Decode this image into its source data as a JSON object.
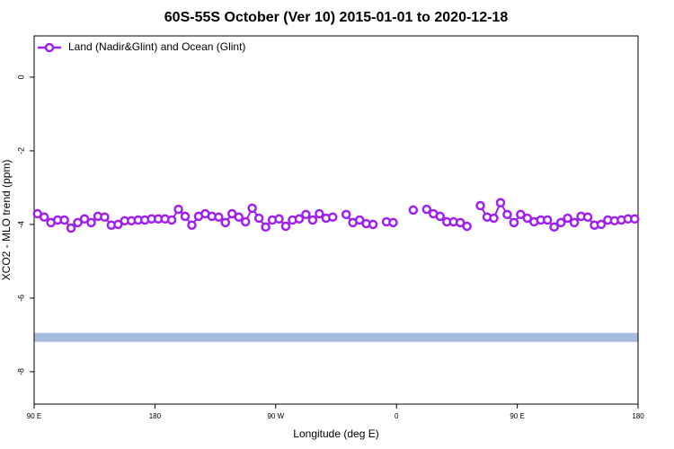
{
  "chart_data": {
    "type": "line",
    "title": "60S-55S October (Ver 10)   2015-01-01 to 2020-12-18",
    "x_label": "Longitude (deg E)",
    "y_label": "XCO2 - MLO trend (ppm)",
    "x": [
      92.5,
      97.5,
      102.5,
      107.5,
      112.5,
      117.5,
      122.5,
      127.5,
      132.5,
      137.5,
      142.5,
      147.5,
      152.5,
      157.5,
      162.5,
      167.5,
      172.5,
      177.5,
      182.5,
      187.5,
      192.5,
      197.5,
      202.5,
      207.5,
      212.5,
      217.5,
      222.5,
      227.5,
      232.5,
      237.5,
      242.5,
      247.5,
      252.5,
      257.5,
      262.5,
      267.5,
      272.5,
      277.5,
      282.5,
      287.5,
      292.5,
      297.5,
      302.5,
      307.5,
      312.5,
      317.5,
      322.5,
      327.5,
      332.5,
      337.5,
      342.5,
      347.5,
      352.5,
      357.5,
      362.5,
      367.5,
      372.5,
      377.5,
      382.5,
      387.5,
      392.5,
      397.5,
      402.5,
      407.5,
      412.5,
      417.5,
      422.5,
      427.5,
      432.5,
      437.5,
      442.5,
      447.5,
      452.5,
      457.5,
      462.5,
      467.5,
      472.5,
      477.5,
      482.5,
      487.5,
      492.5,
      497.5,
      502.5,
      507.5,
      512.5,
      517.5,
      522.5,
      527.5,
      532.5,
      537.5
    ],
    "series": [
      {
        "name": "Land (Nadir&Glint) and Ocean (Glint)",
        "color": "#a020f0",
        "values": [
          -3.71,
          -3.8,
          -3.95,
          -3.88,
          -3.88,
          -4.1,
          -3.95,
          -3.85,
          -3.95,
          -3.78,
          -3.8,
          -4.02,
          -4.0,
          -3.9,
          -3.9,
          -3.88,
          -3.88,
          -3.85,
          -3.85,
          -3.85,
          -3.88,
          -3.59,
          -3.78,
          -4.02,
          -3.78,
          -3.71,
          -3.78,
          -3.8,
          -3.95,
          -3.71,
          -3.8,
          -3.93,
          -3.56,
          -3.83,
          -4.07,
          -3.88,
          -3.85,
          -4.05,
          -3.88,
          -3.85,
          -3.73,
          -3.88,
          -3.71,
          -3.83,
          -3.8,
          null,
          -3.73,
          -3.95,
          -3.88,
          -3.98,
          -4.0,
          null,
          -3.93,
          -3.95,
          null,
          null,
          -3.61,
          null,
          -3.59,
          -3.71,
          -3.78,
          -3.93,
          -3.93,
          -3.95,
          -4.05,
          null,
          -3.49,
          -3.8,
          -3.83,
          -3.41,
          -3.73,
          -3.95,
          -3.73,
          -3.83,
          -3.93,
          -3.88,
          -3.88,
          -4.07,
          -3.95,
          -3.83,
          -3.95,
          -3.78,
          -3.8,
          -4.02,
          -4.0,
          -3.88,
          -3.9,
          -3.88,
          -3.85,
          -3.85
        ]
      }
    ],
    "reference_line": {
      "value": -7.07,
      "color": "#a7bde0"
    },
    "xlim": [
      90,
      540
    ],
    "xticks": [
      {
        "value": 90,
        "label": "90 E"
      },
      180,
      {
        "value": 270,
        "label": "90 W"
      },
      {
        "value": 360,
        "label": "0"
      },
      {
        "value": 450,
        "label": "90 E"
      },
      {
        "value": 540,
        "label": "180"
      }
    ],
    "ylim": [
      -8.88,
      1.12
    ],
    "yticks": [
      0,
      -2,
      -4,
      -6,
      -8
    ],
    "legend": "top-left"
  }
}
